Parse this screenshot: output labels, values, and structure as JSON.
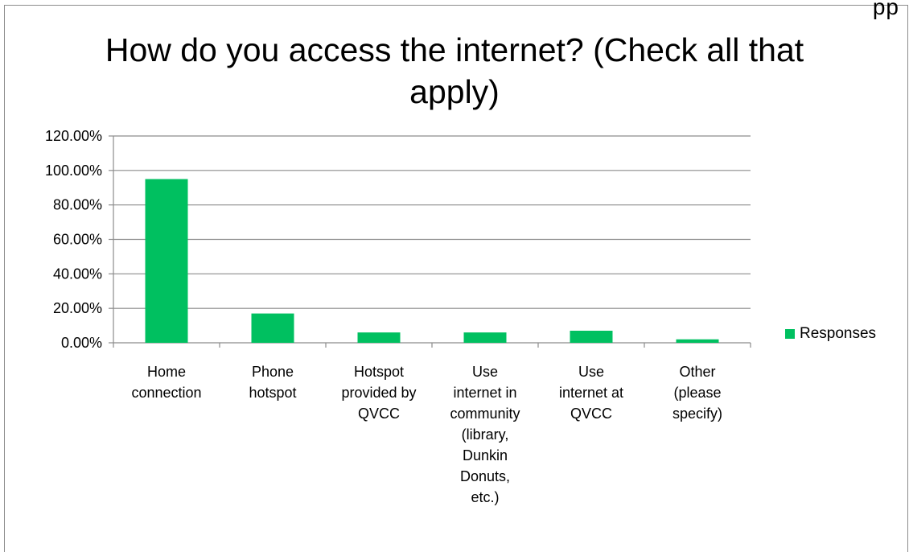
{
  "chart_data": {
    "type": "bar",
    "title": "How do you access the internet? (Check all that apply)",
    "xlabel": "",
    "ylabel": "",
    "ylim": [
      0,
      1.2
    ],
    "y_ticks": [
      "0.00%",
      "20.00%",
      "40.00%",
      "60.00%",
      "80.00%",
      "100.00%",
      "120.00%"
    ],
    "y_tick_values": [
      0,
      0.2,
      0.4,
      0.6,
      0.8,
      1.0,
      1.2
    ],
    "categories": [
      [
        "Home",
        "connection"
      ],
      [
        "Phone",
        "hotspot"
      ],
      [
        "Hotspot",
        "provided by",
        "QVCC"
      ],
      [
        "Use",
        "internet in",
        "community",
        "(library,",
        "Dunkin",
        "Donuts,",
        "etc.)"
      ],
      [
        "Use",
        "internet at",
        "QVCC"
      ],
      [
        "Other",
        "(please",
        "specify)"
      ]
    ],
    "series": [
      {
        "name": "Responses",
        "values": [
          0.95,
          0.17,
          0.06,
          0.06,
          0.07,
          0.02
        ],
        "color": "#00c060"
      }
    ],
    "grid": true,
    "legend_position": "right"
  },
  "page": {
    "cut_off_text": "pp"
  }
}
